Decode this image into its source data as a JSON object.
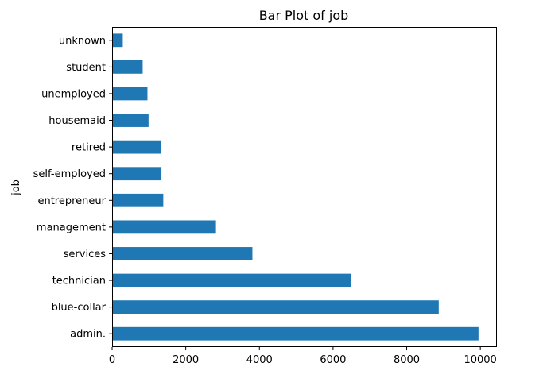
{
  "chart_data": {
    "type": "bar",
    "orientation": "horizontal",
    "title": "Bar Plot of job",
    "xlabel": "",
    "ylabel": "job",
    "categories": [
      "admin.",
      "blue-collar",
      "technician",
      "services",
      "management",
      "entrepreneur",
      "self-employed",
      "retired",
      "housemaid",
      "unemployed",
      "student",
      "unknown"
    ],
    "values": [
      9950,
      8870,
      6490,
      3810,
      2820,
      1390,
      1340,
      1320,
      990,
      960,
      830,
      290
    ],
    "xlim": [
      0,
      10450
    ],
    "xticks": [
      0,
      2000,
      4000,
      6000,
      8000,
      10000
    ],
    "xtick_labels": [
      "0",
      "2000",
      "4000",
      "6000",
      "8000",
      "10000"
    ],
    "grid": false,
    "bar_color": "#1f77b4"
  }
}
